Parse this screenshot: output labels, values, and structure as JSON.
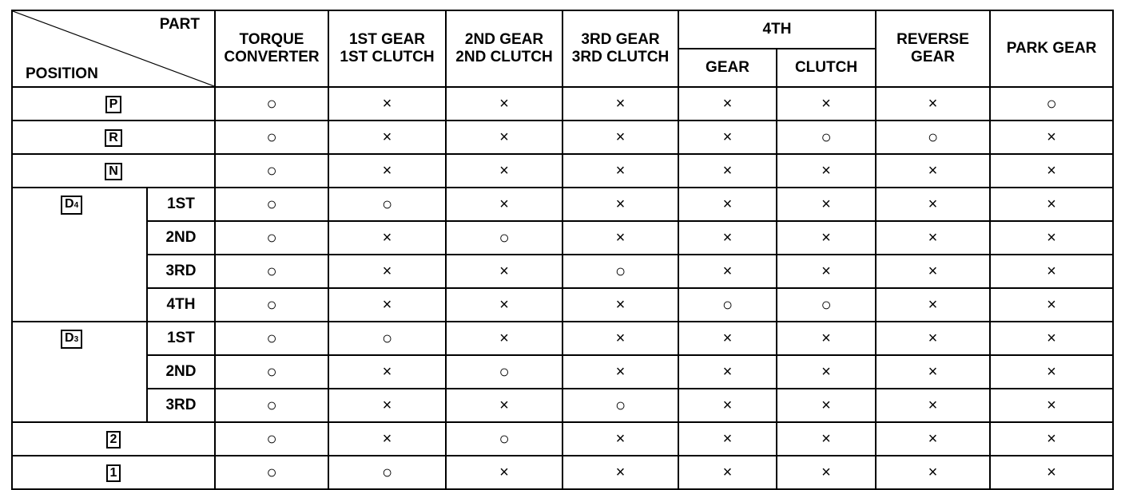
{
  "header": {
    "corner_part": "PART",
    "corner_position": "POSITION",
    "columns": [
      "TORQUE\nCONVERTER",
      "1ST GEAR\n1ST CLUTCH",
      "2ND GEAR\n2ND CLUTCH",
      "3RD GEAR\n3RD CLUTCH"
    ],
    "fourth": "4TH",
    "fourth_sub": [
      "GEAR",
      "CLUTCH"
    ],
    "reverse": "REVERSE\nGEAR",
    "park": "PARK GEAR"
  },
  "symbols": {
    "engaged": "○",
    "not_engaged": "×"
  },
  "rows": [
    {
      "position": "P",
      "sub": "",
      "values": [
        "○",
        "×",
        "×",
        "×",
        "×",
        "×",
        "×",
        "○"
      ]
    },
    {
      "position": "R",
      "sub": "",
      "values": [
        "○",
        "×",
        "×",
        "×",
        "×",
        "○",
        "○",
        "×"
      ]
    },
    {
      "position": "N",
      "sub": "",
      "values": [
        "○",
        "×",
        "×",
        "×",
        "×",
        "×",
        "×",
        "×"
      ]
    },
    {
      "position": "D4",
      "sub": "1ST",
      "values": [
        "○",
        "○",
        "×",
        "×",
        "×",
        "×",
        "×",
        "×"
      ]
    },
    {
      "position": "D4",
      "sub": "2ND",
      "values": [
        "○",
        "×",
        "○",
        "×",
        "×",
        "×",
        "×",
        "×"
      ]
    },
    {
      "position": "D4",
      "sub": "3RD",
      "values": [
        "○",
        "×",
        "×",
        "○",
        "×",
        "×",
        "×",
        "×"
      ]
    },
    {
      "position": "D4",
      "sub": "4TH",
      "values": [
        "○",
        "×",
        "×",
        "×",
        "○",
        "○",
        "×",
        "×"
      ]
    },
    {
      "position": "D3",
      "sub": "1ST",
      "values": [
        "○",
        "○",
        "×",
        "×",
        "×",
        "×",
        "×",
        "×"
      ]
    },
    {
      "position": "D3",
      "sub": "2ND",
      "values": [
        "○",
        "×",
        "○",
        "×",
        "×",
        "×",
        "×",
        "×"
      ]
    },
    {
      "position": "D3",
      "sub": "3RD",
      "values": [
        "○",
        "×",
        "×",
        "○",
        "×",
        "×",
        "×",
        "×"
      ]
    },
    {
      "position": "2",
      "sub": "",
      "values": [
        "○",
        "×",
        "○",
        "×",
        "×",
        "×",
        "×",
        "×"
      ]
    },
    {
      "position": "1",
      "sub": "",
      "values": [
        "○",
        "○",
        "×",
        "×",
        "×",
        "×",
        "×",
        "×"
      ]
    }
  ]
}
